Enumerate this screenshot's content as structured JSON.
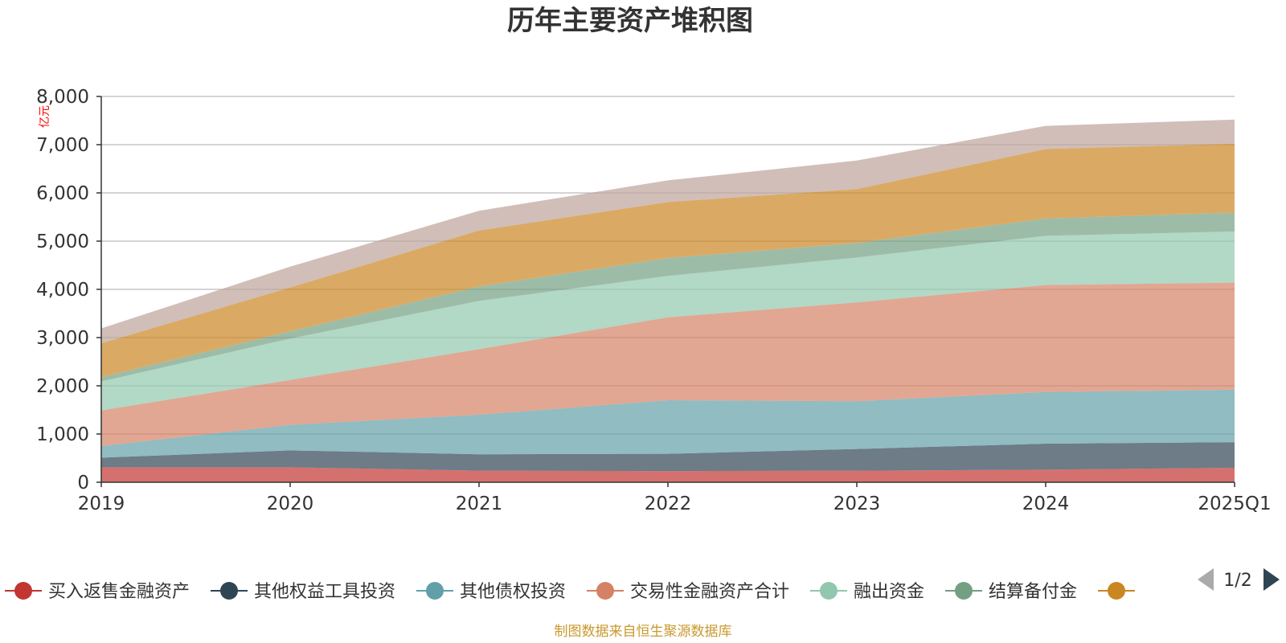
{
  "chart_data": {
    "type": "area",
    "stacked": true,
    "title": "历年主要资产堆积图",
    "unit_label": "亿元",
    "categories": [
      "2019",
      "2020",
      "2021",
      "2022",
      "2023",
      "2024",
      "2025Q1"
    ],
    "ylim": [
      0,
      8000
    ],
    "yticks": [
      0,
      1000,
      2000,
      3000,
      4000,
      5000,
      6000,
      7000,
      8000
    ],
    "ytick_labels": [
      "0",
      "1,000",
      "2,000",
      "3,000",
      "4,000",
      "5,000",
      "6,000",
      "7,000",
      "8,000"
    ],
    "grid": true,
    "legend_position": "bottom",
    "series": [
      {
        "name": "买入返售金融资产",
        "color": "#c23531",
        "legend_visible": true,
        "values": [
          310,
          310,
          240,
          230,
          240,
          260,
          300
        ]
      },
      {
        "name": "其他权益工具投资",
        "color": "#2f4554",
        "legend_visible": true,
        "values": [
          200,
          350,
          340,
          360,
          450,
          540,
          530
        ]
      },
      {
        "name": "其他债权投资",
        "color": "#61a0a8",
        "legend_visible": true,
        "values": [
          240,
          530,
          820,
          1110,
          990,
          1070,
          1090
        ]
      },
      {
        "name": "交易性金融资产合计",
        "color": "#d48265",
        "legend_visible": true,
        "values": [
          740,
          930,
          1360,
          1720,
          2050,
          2220,
          2220
        ]
      },
      {
        "name": "融出资金",
        "color": "#91c7ae",
        "legend_visible": true,
        "values": [
          600,
          860,
          1000,
          860,
          930,
          1020,
          1060
        ]
      },
      {
        "name": "结算备付金",
        "color": "#749f83",
        "legend_visible": true,
        "values": [
          90,
          150,
          300,
          370,
          300,
          360,
          390
        ]
      },
      {
        "name": "",
        "color": "#ca8622",
        "legend_visible": true,
        "values": [
          700,
          910,
          1160,
          1160,
          1120,
          1440,
          1430
        ]
      },
      {
        "name": "",
        "color": "#bda29a",
        "legend_visible": false,
        "values": [
          310,
          430,
          410,
          450,
          590,
          480,
          500
        ]
      }
    ]
  },
  "legend": {
    "page_indicator": "1/2",
    "prev_icon": "triangle-left-icon",
    "next_icon": "triangle-right-icon"
  },
  "source_note": "制图数据来自恒生聚源数据库"
}
